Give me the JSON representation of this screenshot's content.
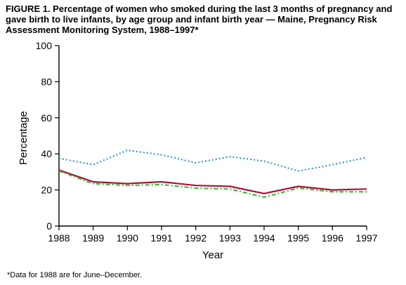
{
  "figure": {
    "title": "FIGURE 1. Percentage of women who smoked during the last 3 months of pregnancy and gave birth to live infants, by age group and infant birth year — Maine, Pregnancy Risk Assessment Monitoring System, 1988–1997*",
    "footnote": "*Data for 1988 are for June–December."
  },
  "chart_data": {
    "type": "line",
    "title": "",
    "xlabel": "Year",
    "ylabel": "Percentage",
    "x": [
      1988,
      1989,
      1990,
      1991,
      1992,
      1993,
      1994,
      1995,
      1996,
      1997
    ],
    "xlim": [
      1988,
      1997
    ],
    "ylim": [
      0,
      100
    ],
    "yticks": [
      0,
      20,
      40,
      60,
      80,
      100
    ],
    "grid": false,
    "legend": "none",
    "series": [
      {
        "values": [
          37.5,
          34,
          42,
          39.5,
          35,
          38.5,
          36,
          30.5,
          34,
          38
        ],
        "color": "#1f8fd6",
        "style": "dotted"
      },
      {
        "values": [
          31,
          24.5,
          23.5,
          24.5,
          22.5,
          22,
          18,
          22,
          20,
          20.5
        ],
        "color": "#b0103a",
        "style": "solid"
      },
      {
        "values": [
          30.5,
          23.5,
          22.5,
          23,
          21,
          20.5,
          16,
          21,
          19,
          19
        ],
        "color": "#2db82d",
        "style": "dashdot"
      }
    ]
  }
}
